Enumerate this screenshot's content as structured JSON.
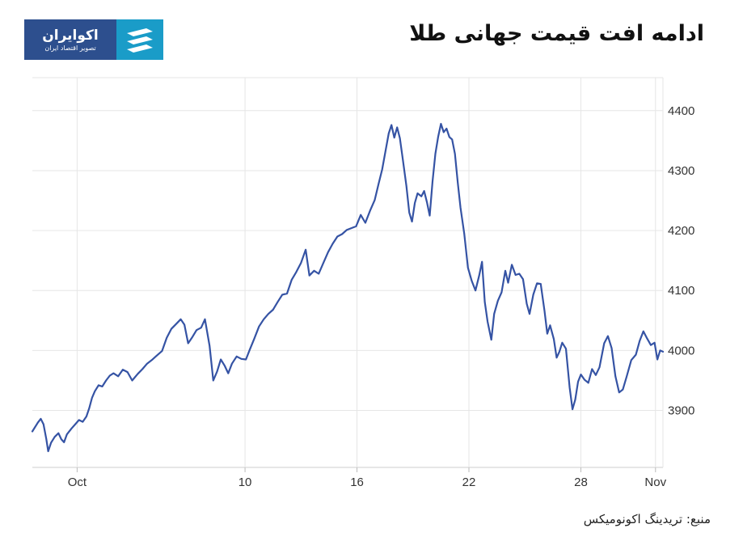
{
  "header": {
    "title": "ادامه افت قیمت جهانی طلا",
    "logo_name": "اکوایران",
    "logo_tagline": "تصویر اقتصاد ایران",
    "logo_icon": "stripes-icon"
  },
  "footer": {
    "source": "منبع: تریدینگ اکونومیکس"
  },
  "colors": {
    "line": "#3553a4",
    "grid": "#e6e6e6",
    "logo_dark": "#2d4f8e",
    "logo_light": "#1a9cc8"
  },
  "chart_data": {
    "type": "line",
    "title": "",
    "xlabel": "",
    "ylabel": "",
    "x_ticks": [
      {
        "day": 0,
        "label": "Oct"
      },
      {
        "day": 9,
        "label": "10"
      },
      {
        "day": 15,
        "label": "16"
      },
      {
        "day": 21,
        "label": "22"
      },
      {
        "day": 27,
        "label": "28"
      },
      {
        "day": 31,
        "label": "Nov"
      }
    ],
    "y_ticks": [
      3900,
      4000,
      4100,
      4200,
      4300,
      4400
    ],
    "ylim": [
      3805,
      4455
    ],
    "xlim": [
      -2.4,
      31.4
    ],
    "grid": true,
    "y_axis_side": "right",
    "series": [
      {
        "values": [
          [
            -2.4,
            3865
          ],
          [
            -2.1,
            3880
          ],
          [
            -1.95,
            3886
          ],
          [
            -1.8,
            3877
          ],
          [
            -1.65,
            3852
          ],
          [
            -1.55,
            3832
          ],
          [
            -1.4,
            3846
          ],
          [
            -1.2,
            3856
          ],
          [
            -1.0,
            3862
          ],
          [
            -0.85,
            3852
          ],
          [
            -0.7,
            3847
          ],
          [
            -0.55,
            3860
          ],
          [
            -0.3,
            3870
          ],
          [
            -0.1,
            3877
          ],
          [
            0.1,
            3884
          ],
          [
            0.3,
            3881
          ],
          [
            0.5,
            3890
          ],
          [
            0.65,
            3904
          ],
          [
            0.8,
            3921
          ],
          [
            0.95,
            3932
          ],
          [
            1.15,
            3942
          ],
          [
            1.35,
            3940
          ],
          [
            1.55,
            3950
          ],
          [
            1.75,
            3958
          ],
          [
            1.95,
            3962
          ],
          [
            2.2,
            3957
          ],
          [
            2.45,
            3968
          ],
          [
            2.7,
            3964
          ],
          [
            2.95,
            3950
          ],
          [
            3.25,
            3961
          ],
          [
            3.5,
            3969
          ],
          [
            3.75,
            3978
          ],
          [
            4.0,
            3984
          ],
          [
            4.25,
            3991
          ],
          [
            4.55,
            3999
          ],
          [
            4.8,
            4021
          ],
          [
            5.05,
            4036
          ],
          [
            5.3,
            4044
          ],
          [
            5.55,
            4052
          ],
          [
            5.75,
            4043
          ],
          [
            5.95,
            4012
          ],
          [
            6.15,
            4021
          ],
          [
            6.4,
            4034
          ],
          [
            6.65,
            4038
          ],
          [
            6.85,
            4052
          ],
          [
            7.1,
            4008
          ],
          [
            7.3,
            3950
          ],
          [
            7.5,
            3965
          ],
          [
            7.7,
            3985
          ],
          [
            7.9,
            3975
          ],
          [
            8.1,
            3962
          ],
          [
            8.3,
            3978
          ],
          [
            8.55,
            3990
          ],
          [
            8.8,
            3986
          ],
          [
            9.05,
            3985
          ],
          [
            9.25,
            4001
          ],
          [
            9.5,
            4020
          ],
          [
            9.75,
            4040
          ],
          [
            10.0,
            4052
          ],
          [
            10.25,
            4061
          ],
          [
            10.5,
            4068
          ],
          [
            10.75,
            4081
          ],
          [
            11.0,
            4093
          ],
          [
            11.25,
            4095
          ],
          [
            11.5,
            4118
          ],
          [
            11.75,
            4131
          ],
          [
            12.0,
            4146
          ],
          [
            12.25,
            4168
          ],
          [
            12.45,
            4125
          ],
          [
            12.7,
            4133
          ],
          [
            12.95,
            4128
          ],
          [
            13.2,
            4146
          ],
          [
            13.45,
            4164
          ],
          [
            13.7,
            4178
          ],
          [
            13.95,
            4190
          ],
          [
            14.2,
            4194
          ],
          [
            14.45,
            4201
          ],
          [
            14.7,
            4204
          ],
          [
            14.95,
            4207
          ],
          [
            15.2,
            4226
          ],
          [
            15.45,
            4213
          ],
          [
            15.7,
            4233
          ],
          [
            15.95,
            4251
          ],
          [
            16.15,
            4277
          ],
          [
            16.35,
            4302
          ],
          [
            16.55,
            4336
          ],
          [
            16.7,
            4362
          ],
          [
            16.85,
            4376
          ],
          [
            17.0,
            4355
          ],
          [
            17.15,
            4372
          ],
          [
            17.3,
            4354
          ],
          [
            17.45,
            4320
          ],
          [
            17.65,
            4274
          ],
          [
            17.8,
            4230
          ],
          [
            17.95,
            4215
          ],
          [
            18.1,
            4246
          ],
          [
            18.25,
            4262
          ],
          [
            18.45,
            4257
          ],
          [
            18.6,
            4266
          ],
          [
            18.75,
            4247
          ],
          [
            18.9,
            4225
          ],
          [
            19.05,
            4282
          ],
          [
            19.2,
            4328
          ],
          [
            19.35,
            4356
          ],
          [
            19.5,
            4378
          ],
          [
            19.65,
            4364
          ],
          [
            19.8,
            4370
          ],
          [
            19.95,
            4356
          ],
          [
            20.1,
            4352
          ],
          [
            20.25,
            4328
          ],
          [
            20.4,
            4280
          ],
          [
            20.55,
            4238
          ],
          [
            20.75,
            4195
          ],
          [
            20.95,
            4138
          ],
          [
            21.15,
            4116
          ],
          [
            21.35,
            4100
          ],
          [
            21.55,
            4125
          ],
          [
            21.7,
            4148
          ],
          [
            21.85,
            4081
          ],
          [
            22.0,
            4048
          ],
          [
            22.2,
            4018
          ],
          [
            22.35,
            4061
          ],
          [
            22.55,
            4083
          ],
          [
            22.75,
            4097
          ],
          [
            22.95,
            4133
          ],
          [
            23.1,
            4113
          ],
          [
            23.3,
            4143
          ],
          [
            23.5,
            4126
          ],
          [
            23.7,
            4128
          ],
          [
            23.9,
            4119
          ],
          [
            24.1,
            4078
          ],
          [
            24.25,
            4061
          ],
          [
            24.45,
            4093
          ],
          [
            24.65,
            4112
          ],
          [
            24.85,
            4111
          ],
          [
            25.05,
            4066
          ],
          [
            25.2,
            4028
          ],
          [
            25.35,
            4042
          ],
          [
            25.55,
            4019
          ],
          [
            25.7,
            3988
          ],
          [
            25.85,
            3998
          ],
          [
            26.0,
            4013
          ],
          [
            26.2,
            4003
          ],
          [
            26.4,
            3938
          ],
          [
            26.55,
            3902
          ],
          [
            26.7,
            3918
          ],
          [
            26.85,
            3948
          ],
          [
            27.0,
            3960
          ],
          [
            27.2,
            3951
          ],
          [
            27.4,
            3946
          ],
          [
            27.6,
            3969
          ],
          [
            27.8,
            3959
          ],
          [
            28.0,
            3972
          ],
          [
            28.25,
            4012
          ],
          [
            28.45,
            4024
          ],
          [
            28.65,
            4004
          ],
          [
            28.85,
            3957
          ],
          [
            29.05,
            3930
          ],
          [
            29.25,
            3935
          ],
          [
            29.45,
            3956
          ],
          [
            29.7,
            3984
          ],
          [
            29.95,
            3993
          ],
          [
            30.15,
            4016
          ],
          [
            30.35,
            4032
          ],
          [
            30.55,
            4020
          ],
          [
            30.75,
            4009
          ],
          [
            30.95,
            4013
          ],
          [
            31.1,
            3985
          ],
          [
            31.25,
            4000
          ],
          [
            31.4,
            3998
          ]
        ]
      }
    ]
  }
}
